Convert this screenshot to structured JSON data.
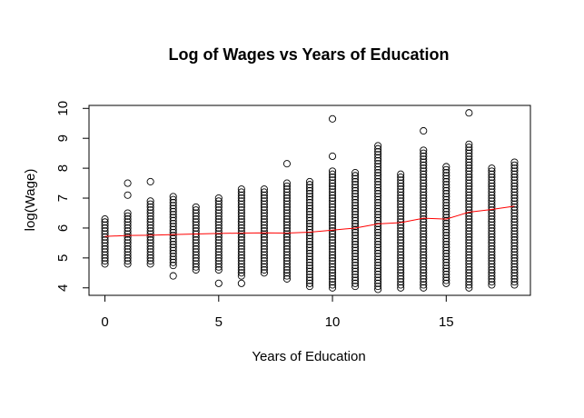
{
  "chart_data": {
    "type": "scatter",
    "title": "Log of Wages vs Years of Education",
    "xlabel": "Years of Education",
    "ylabel": "log(Wage)",
    "xlim": [
      -0.7,
      18.7
    ],
    "ylim": [
      3.75,
      10.1
    ],
    "xticks": [
      0,
      5,
      10,
      15
    ],
    "yticks": [
      4,
      5,
      6,
      7,
      8,
      9,
      10
    ],
    "grid": false,
    "legend": "none",
    "marker": "open-circle",
    "point_color": "#000000",
    "trend_color": "#ff0000",
    "groups": [
      {
        "x": 0,
        "min": 4.8,
        "max": 6.3,
        "extremes": []
      },
      {
        "x": 1,
        "min": 4.8,
        "max": 6.5,
        "extremes": [
          7.1,
          7.5
        ]
      },
      {
        "x": 2,
        "min": 4.8,
        "max": 6.9,
        "extremes": [
          7.55
        ]
      },
      {
        "x": 3,
        "min": 4.75,
        "max": 7.1,
        "extremes": [
          4.4
        ]
      },
      {
        "x": 4,
        "min": 4.6,
        "max": 6.75,
        "extremes": []
      },
      {
        "x": 5,
        "min": 4.6,
        "max": 7.0,
        "extremes": [
          4.15
        ]
      },
      {
        "x": 6,
        "min": 4.4,
        "max": 7.3,
        "extremes": [
          4.15
        ]
      },
      {
        "x": 7,
        "min": 4.5,
        "max": 7.3,
        "extremes": []
      },
      {
        "x": 8,
        "min": 4.3,
        "max": 7.5,
        "extremes": [
          8.15
        ]
      },
      {
        "x": 9,
        "min": 4.05,
        "max": 7.6,
        "extremes": []
      },
      {
        "x": 10,
        "min": 4.0,
        "max": 7.9,
        "extremes": [
          8.4,
          9.65
        ]
      },
      {
        "x": 11,
        "min": 4.05,
        "max": 7.85,
        "extremes": []
      },
      {
        "x": 12,
        "min": 3.95,
        "max": 8.8,
        "extremes": []
      },
      {
        "x": 13,
        "min": 4.0,
        "max": 7.85,
        "extremes": []
      },
      {
        "x": 14,
        "min": 4.0,
        "max": 8.6,
        "extremes": [
          9.25
        ]
      },
      {
        "x": 15,
        "min": 4.15,
        "max": 8.05,
        "extremes": []
      },
      {
        "x": 16,
        "min": 4.0,
        "max": 8.85,
        "extremes": [
          9.85
        ]
      },
      {
        "x": 17,
        "min": 4.1,
        "max": 8.05,
        "extremes": []
      },
      {
        "x": 18,
        "min": 4.1,
        "max": 8.2,
        "extremes": []
      }
    ],
    "trend": {
      "x": [
        0,
        1,
        2,
        3,
        4,
        5,
        6,
        7,
        8,
        9,
        10,
        11,
        12,
        13,
        14,
        15,
        16,
        17,
        18
      ],
      "y": [
        5.72,
        5.75,
        5.76,
        5.78,
        5.8,
        5.82,
        5.83,
        5.84,
        5.83,
        5.86,
        5.93,
        6.0,
        6.14,
        6.18,
        6.33,
        6.3,
        6.53,
        6.62,
        6.73
      ]
    }
  }
}
